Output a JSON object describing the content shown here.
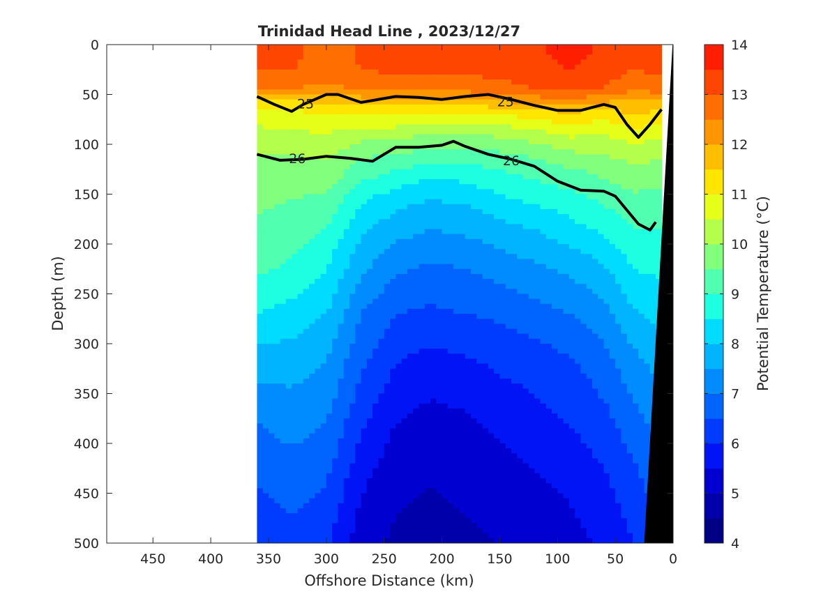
{
  "chart_data": {
    "type": "heatmap",
    "title": "Trinidad Head Line , 2023/12/27",
    "xlabel": "Offshore Distance (km)",
    "ylabel": "Depth (m)",
    "xlim": [
      490,
      0
    ],
    "ylim": [
      0,
      500
    ],
    "x_reversed": true,
    "y_reversed": true,
    "xticks": [
      450,
      400,
      350,
      300,
      250,
      200,
      150,
      100,
      50,
      0
    ],
    "yticks": [
      0,
      50,
      100,
      150,
      200,
      250,
      300,
      350,
      400,
      450,
      500
    ],
    "colorbar": {
      "label": "Potential Temperature (°C)",
      "min": 4,
      "max": 14,
      "ticks": [
        4,
        5,
        6,
        7,
        8,
        9,
        10,
        11,
        12,
        13,
        14
      ],
      "step": 0.5,
      "colors": [
        "#000086",
        "#0000aa",
        "#0000d0",
        "#0014f5",
        "#003cff",
        "#0064ff",
        "#008cff",
        "#00b4ff",
        "#00dcff",
        "#1effe1",
        "#50ffaf",
        "#82ff7d",
        "#b4ff4b",
        "#e6ff19",
        "#ffe600",
        "#ffbe00",
        "#ff9600",
        "#ff6e00",
        "#ff4600",
        "#ff1e00",
        "#e60000",
        "#b40000"
      ]
    },
    "data_extent_km": [
      360,
      10
    ],
    "depths": [
      0,
      25,
      45,
      55,
      70,
      90,
      110,
      130,
      155,
      185,
      225,
      270,
      320,
      380,
      440,
      500
    ],
    "profiles": [
      {
        "x": 360,
        "t": [
          13.0,
          13.0,
          12.7,
          11.3,
          10.8,
          10.3,
          10.0,
          9.7,
          9.6,
          9.4,
          9.1,
          8.5,
          7.7,
          7.0,
          6.5,
          6.1
        ]
      },
      {
        "x": 330,
        "t": [
          13.2,
          13.0,
          12.5,
          11.5,
          10.8,
          10.4,
          10.0,
          9.8,
          9.5,
          9.3,
          8.9,
          8.3,
          7.7,
          7.2,
          6.7,
          6.3
        ]
      },
      {
        "x": 300,
        "t": [
          12.6,
          12.8,
          12.3,
          11.8,
          11.0,
          10.5,
          10.1,
          9.8,
          9.4,
          9.0,
          8.5,
          8.0,
          7.5,
          7.0,
          6.5,
          6.1
        ]
      },
      {
        "x": 270,
        "t": [
          13.1,
          13.0,
          12.6,
          11.8,
          11.0,
          10.2,
          9.6,
          9.2,
          8.6,
          8.1,
          7.6,
          7.0,
          6.6,
          6.1,
          5.6,
          5.2
        ]
      },
      {
        "x": 240,
        "t": [
          13.2,
          13.1,
          12.6,
          11.9,
          11.0,
          10.2,
          9.5,
          8.9,
          8.2,
          7.7,
          7.1,
          6.5,
          6.0,
          5.5,
          5.1,
          4.9
        ]
      },
      {
        "x": 210,
        "t": [
          13.2,
          13.1,
          12.6,
          11.8,
          10.9,
          10.0,
          9.3,
          8.6,
          8.0,
          7.5,
          6.9,
          6.4,
          5.8,
          5.3,
          5.0,
          4.8
        ]
      },
      {
        "x": 180,
        "t": [
          13.2,
          13.1,
          12.7,
          11.8,
          10.9,
          10.0,
          9.2,
          8.7,
          8.1,
          7.6,
          7.0,
          6.5,
          5.9,
          5.4,
          5.1,
          4.9
        ]
      },
      {
        "x": 150,
        "t": [
          13.3,
          13.2,
          12.8,
          12.1,
          11.0,
          10.1,
          9.4,
          8.9,
          8.4,
          7.8,
          7.2,
          6.6,
          6.1,
          5.6,
          5.2,
          5.0
        ]
      },
      {
        "x": 120,
        "t": [
          13.4,
          13.3,
          13.0,
          12.3,
          11.2,
          10.3,
          9.6,
          9.1,
          8.6,
          8.0,
          7.4,
          6.8,
          6.2,
          5.8,
          5.4,
          5.1
        ]
      },
      {
        "x": 90,
        "t": [
          13.8,
          13.5,
          13.1,
          12.4,
          11.4,
          10.6,
          9.9,
          9.3,
          8.8,
          8.3,
          7.6,
          7.0,
          6.4,
          6.0,
          5.6,
          5.3
        ]
      },
      {
        "x": 60,
        "t": [
          13.4,
          13.3,
          13.0,
          12.2,
          11.2,
          10.5,
          10.0,
          9.6,
          9.1,
          8.6,
          7.9,
          7.3,
          6.8,
          6.3,
          5.9,
          5.6
        ]
      },
      {
        "x": 35,
        "t": [
          13.2,
          13.0,
          12.5,
          12.0,
          11.5,
          10.8,
          10.2,
          9.8,
          9.4,
          9.0,
          8.5,
          7.9,
          7.3,
          6.8,
          6.3,
          6.0
        ]
      },
      {
        "x": 10,
        "t": [
          13.2,
          13.1,
          12.8,
          12.0,
          11.3,
          10.6,
          10.1,
          9.7,
          9.3,
          9.0,
          8.6,
          8.2,
          7.7,
          7.2,
          6.8,
          6.4
        ]
      }
    ],
    "isopycnals": [
      {
        "label": "25",
        "x": [
          360,
          345,
          330,
          320,
          310,
          300,
          290,
          270,
          260,
          240,
          220,
          200,
          180,
          160,
          140,
          120,
          100,
          80,
          70,
          60,
          50,
          40,
          30,
          20,
          10
        ],
        "y": [
          52,
          60,
          67,
          60,
          55,
          50,
          50,
          58,
          56,
          52,
          53,
          55,
          52,
          50,
          55,
          61,
          66,
          66,
          63,
          60,
          63,
          80,
          93,
          80,
          65
        ]
      },
      {
        "label": "26",
        "x": [
          360,
          340,
          320,
          300,
          280,
          260,
          240,
          220,
          200,
          190,
          180,
          160,
          140,
          120,
          100,
          80,
          60,
          50,
          40,
          30,
          20,
          15
        ],
        "y": [
          110,
          116,
          115,
          112,
          114,
          117,
          103,
          103,
          101,
          97,
          102,
          110,
          115,
          122,
          137,
          146,
          147,
          152,
          166,
          180,
          186,
          178
        ]
      }
    ],
    "contour_labels": [
      {
        "text": "25",
        "x": 318,
        "y": 59
      },
      {
        "text": "25",
        "x": 145,
        "y": 57
      },
      {
        "text": "26",
        "x": 325,
        "y": 114
      },
      {
        "text": "26",
        "x": 140,
        "y": 116
      }
    ],
    "bathymetry": {
      "x": [
        0,
        0.5,
        25,
        25,
        0
      ],
      "y": [
        0,
        0,
        500,
        500,
        500
      ]
    }
  }
}
